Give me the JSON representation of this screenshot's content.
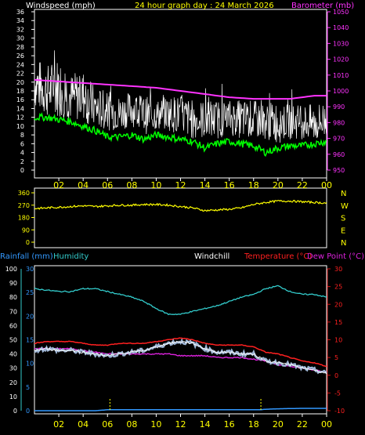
{
  "header": {
    "windspeed_label": "Windspeed (mph)",
    "title": "24 hour graph day : 24 March 2026",
    "barometer_label": "Barometer (mb)"
  },
  "labels": {
    "rainfall": "Rainfall (mm)",
    "humidity": "Humidity",
    "windchill": "Windchill",
    "temperature": "Temperature (°C)",
    "dewpoint": "Dew Point (°C)"
  },
  "colors": {
    "windspeed": "#ffffff",
    "gust": "#ffffff",
    "average": "#00ff00",
    "barometer": "#ff33ff",
    "direction": "#ffff00",
    "humidity": "#33cccc",
    "rainfall": "#3399ff",
    "temperature": "#ff2020",
    "windchill": "#ffffff",
    "dewpoint": "#dd22dd",
    "frame": "#ffffff",
    "yellow_text": "#ffff00"
  },
  "hour_ticks": [
    "02",
    "04",
    "06",
    "08",
    "10",
    "12",
    "14",
    "16",
    "18",
    "20",
    "22",
    "00"
  ],
  "chart_data": [
    {
      "type": "line",
      "title": "24 hour graph day : 24 March 2026",
      "x_unit": "hours",
      "xlim": [
        0,
        24
      ],
      "left_axis": {
        "label": "Windspeed (mph)",
        "ylim": [
          0,
          36
        ],
        "ticks": [
          0,
          2,
          4,
          6,
          8,
          10,
          12,
          14,
          16,
          18,
          20,
          22,
          24,
          26,
          28,
          30,
          32,
          34,
          36
        ]
      },
      "right_axis": {
        "label": "Barometer (mb)",
        "ylim": [
          950,
          1050
        ],
        "ticks": [
          950,
          960,
          970,
          980,
          990,
          1000,
          1010,
          1020,
          1030,
          1040,
          1050
        ]
      },
      "series": [
        {
          "name": "Windspeed (mph)",
          "axis": "left",
          "role": "gust_high",
          "x": [
            0,
            1,
            2,
            3,
            4,
            5,
            6,
            7,
            8,
            9,
            10,
            11,
            12,
            13,
            14,
            15,
            16,
            17,
            18,
            19,
            20,
            21,
            22,
            23,
            24
          ],
          "y": [
            26,
            24,
            26,
            22,
            23,
            19,
            18,
            17,
            18,
            17,
            16,
            17,
            17,
            16,
            16,
            16,
            16,
            16,
            16,
            15,
            16,
            15,
            15,
            15,
            16
          ]
        },
        {
          "name": "",
          "axis": "left",
          "role": "gust_low",
          "x": [
            0,
            1,
            2,
            3,
            4,
            5,
            6,
            7,
            8,
            9,
            10,
            11,
            12,
            13,
            14,
            15,
            16,
            17,
            18,
            19,
            20,
            21,
            22,
            23,
            24
          ],
          "y": [
            14,
            12,
            12,
            11,
            11,
            9,
            9,
            9,
            10,
            8,
            9,
            9,
            8,
            7,
            7,
            7,
            8,
            7,
            7,
            7,
            6,
            7,
            7,
            6,
            7
          ]
        },
        {
          "name": "",
          "axis": "left",
          "role": "average",
          "x": [
            0,
            1,
            2,
            3,
            4,
            5,
            6,
            7,
            8,
            9,
            10,
            11,
            12,
            13,
            14,
            15,
            16,
            17,
            18,
            19,
            20,
            21,
            22,
            23,
            24
          ],
          "y": [
            12,
            12,
            11.5,
            11,
            10,
            9,
            7.5,
            7.5,
            8,
            7,
            8,
            7.5,
            7,
            6.5,
            5,
            6,
            6.5,
            6,
            5.5,
            4,
            5,
            5.5,
            5.5,
            6,
            6.5
          ]
        },
        {
          "name": "Barometer (mb)",
          "axis": "right",
          "x": [
            0,
            2,
            4,
            6,
            8,
            10,
            11,
            12,
            13,
            14,
            16,
            18,
            19,
            20,
            21,
            22,
            23,
            24
          ],
          "y": [
            1007,
            1006,
            1005,
            1004,
            1003,
            1002,
            1001,
            1000,
            999,
            998,
            996,
            995,
            995,
            995,
            995,
            996,
            997,
            997
          ]
        }
      ]
    },
    {
      "type": "line",
      "xlim": [
        0,
        24
      ],
      "left_axis": {
        "ylim": [
          0,
          360
        ],
        "ticks": [
          0,
          90,
          180,
          270,
          360
        ]
      },
      "right_axis": {
        "compass_labels": [
          "N",
          "W",
          "S",
          "E",
          "N"
        ]
      },
      "series": [
        {
          "name": "",
          "axis": "left",
          "x": [
            0,
            1,
            2,
            3,
            4,
            5,
            6,
            7,
            8,
            9,
            10,
            11,
            12,
            13,
            14,
            15,
            16,
            17,
            18,
            19,
            20,
            21,
            22,
            23,
            24
          ],
          "y": [
            245,
            250,
            255,
            260,
            265,
            260,
            265,
            270,
            270,
            275,
            275,
            270,
            260,
            250,
            230,
            235,
            240,
            250,
            275,
            290,
            300,
            300,
            295,
            290,
            285
          ]
        }
      ]
    },
    {
      "type": "line",
      "xlim": [
        0,
        24
      ],
      "left_axis_humidity": {
        "label": "Humidity",
        "ylim": [
          0,
          100
        ],
        "ticks": [
          0,
          10,
          20,
          30,
          40,
          50,
          60,
          70,
          80,
          90,
          100
        ]
      },
      "left_axis_rain": {
        "label": "Rainfall (mm)",
        "ylim": [
          0,
          30
        ],
        "ticks": [
          0,
          5,
          10,
          15,
          20,
          25,
          30
        ]
      },
      "right_axis": {
        "label": "Temperature (°C)",
        "ylim": [
          -10,
          30
        ],
        "ticks": [
          -10,
          -5,
          0,
          5,
          10,
          15,
          20,
          25,
          30
        ]
      },
      "series": [
        {
          "name": "Humidity",
          "axis": "humidity",
          "x": [
            0,
            2,
            3,
            4,
            5,
            6,
            7,
            8,
            9,
            10,
            11,
            12,
            13,
            14,
            15,
            16,
            17,
            18,
            19,
            20,
            21,
            22,
            23,
            24
          ],
          "y": [
            86,
            84,
            84,
            86,
            86,
            84,
            82,
            80,
            77,
            72,
            68,
            68,
            70,
            72,
            74,
            77,
            80,
            82,
            86,
            88,
            84,
            82,
            82,
            80
          ]
        },
        {
          "name": "Rainfall (mm)",
          "axis": "rain",
          "x": [
            0,
            5,
            6,
            12,
            18.5,
            19,
            20,
            22,
            24
          ],
          "y": [
            0,
            0,
            0.2,
            0.2,
            0.2,
            0.3,
            0.4,
            0.5,
            0.5
          ]
        },
        {
          "name": "Temperature (°C)",
          "axis": "temp",
          "x": [
            0,
            1,
            2,
            3,
            4,
            5,
            6,
            7,
            8,
            9,
            10,
            11,
            12,
            13,
            14,
            15,
            16,
            17,
            18,
            19,
            20,
            21,
            22,
            23,
            24
          ],
          "y": [
            9,
            9.5,
            9.5,
            9.5,
            9,
            8.5,
            8.5,
            9,
            9,
            9,
            9.5,
            10,
            10.5,
            10,
            9,
            8.5,
            8.5,
            8.5,
            8,
            6.5,
            6,
            5,
            4,
            3.5,
            2.5
          ]
        },
        {
          "name": "Windchill",
          "axis": "temp",
          "x": [
            0,
            1,
            2,
            3,
            4,
            5,
            6,
            7,
            8,
            9,
            10,
            11,
            12,
            13,
            14,
            15,
            16,
            17,
            18,
            19,
            20,
            21,
            22,
            23,
            24
          ],
          "y": [
            7,
            7.5,
            7,
            7,
            6.5,
            6,
            5.5,
            6,
            6.5,
            7,
            8,
            9,
            9.5,
            9,
            7.5,
            6.5,
            6.5,
            6,
            6,
            4,
            3.5,
            3,
            2,
            1.5,
            0.5
          ]
        },
        {
          "name": "Dew Point (°C)",
          "axis": "temp",
          "x": [
            0,
            1,
            2,
            3,
            4,
            5,
            6,
            7,
            8,
            9,
            10,
            11,
            12,
            13,
            14,
            15,
            16,
            17,
            18,
            19,
            20,
            21,
            22,
            23,
            24
          ],
          "y": [
            7.5,
            7.5,
            7.5,
            7.5,
            7,
            6.5,
            6,
            6,
            6,
            6,
            6,
            6,
            5.5,
            5.5,
            5.5,
            5,
            5,
            5,
            4.5,
            4,
            3,
            2.5,
            2,
            1.5,
            1
          ]
        }
      ]
    }
  ]
}
